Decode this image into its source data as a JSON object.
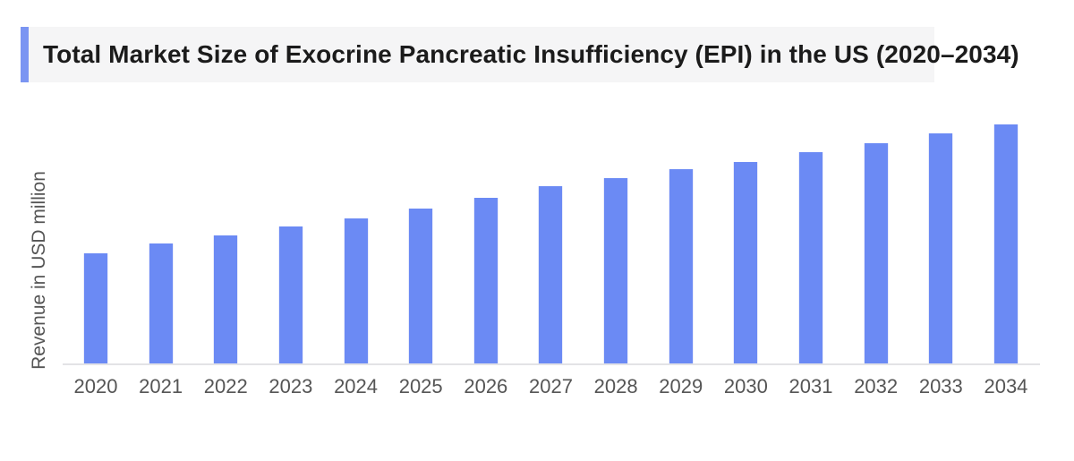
{
  "colors": {
    "bar": "#6b8af4",
    "accent": "#7b95f2",
    "title_bg": "#f5f5f6",
    "title_color": "#1b1b1b",
    "axis_line": "#e3e3e6",
    "label_color": "#555555"
  },
  "chart_data": {
    "type": "bar",
    "title": "Total Market Size of Exocrine Pancreatic Insufficiency (EPI) in the US (2020–2034)",
    "ylabel": "Revenue in USD million",
    "xlabel": "",
    "categories": [
      "2020",
      "2021",
      "2022",
      "2023",
      "2024",
      "2025",
      "2026",
      "2027",
      "2028",
      "2029",
      "2030",
      "2031",
      "2032",
      "2033",
      "2034"
    ],
    "values": [
      123,
      134,
      143,
      153,
      162,
      173,
      185,
      198,
      207,
      217,
      225,
      236,
      246,
      257,
      267
    ],
    "ylim": [
      0,
      270
    ],
    "grid": false,
    "legend": "none",
    "y_tick_labels_visible": false
  }
}
